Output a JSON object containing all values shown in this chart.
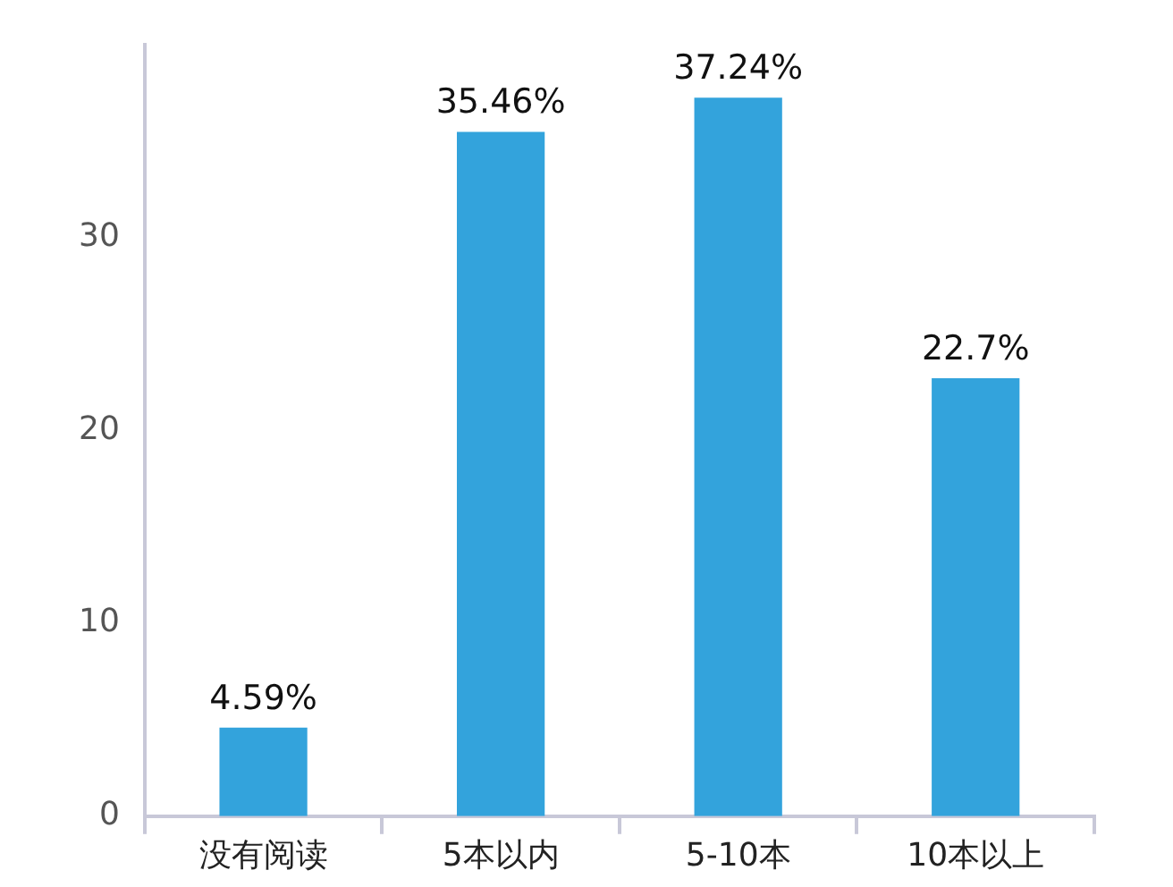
{
  "chart_data": {
    "type": "bar",
    "categories": [
      "没有阅读",
      "5本以内",
      "5-10本",
      "10本以上"
    ],
    "values": [
      4.59,
      35.46,
      37.24,
      22.7
    ],
    "color": "#33a3dc",
    "value_labels": [
      "4.59%",
      "35.46%",
      "37.24%",
      "22.7%"
    ],
    "ylim": [
      0,
      40
    ],
    "yticks": [
      0,
      10,
      20,
      30
    ],
    "grid": false,
    "legend": false
  }
}
